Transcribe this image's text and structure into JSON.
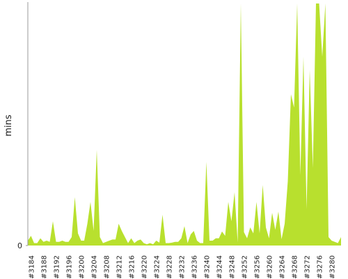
{
  "chart_data": {
    "type": "area",
    "y_label": "mins",
    "color": "#b8e02e",
    "categories": [
      null,
      "#3184",
      null,
      null,
      null,
      "#3188",
      null,
      null,
      null,
      "#3192",
      null,
      null,
      null,
      "#3196",
      null,
      null,
      null,
      "#3200",
      null,
      null,
      null,
      "#3204",
      null,
      null,
      null,
      "#3208",
      null,
      null,
      null,
      "#3212",
      null,
      null,
      null,
      "#3216",
      null,
      null,
      null,
      "#3220",
      null,
      null,
      null,
      "#3224",
      null,
      null,
      null,
      "#3228",
      null,
      null,
      null,
      "#3232",
      null,
      null,
      null,
      "#3236",
      null,
      null,
      null,
      "#3240",
      null,
      null,
      null,
      "#3244",
      null,
      null,
      null,
      "#3248",
      null,
      null,
      null,
      "#3252",
      null,
      null,
      null,
      "#3256",
      null,
      null,
      null,
      "#3260",
      null,
      null,
      null,
      "#3264",
      null,
      null,
      null,
      "#3268",
      null,
      null,
      null,
      "#3272",
      null,
      null,
      null,
      "#3276",
      null,
      null,
      null,
      "#3280",
      null,
      null,
      null
    ],
    "values": [
      2,
      4,
      1,
      1,
      3,
      1.5,
      2,
      1.5,
      10,
      1.5,
      1.5,
      2,
      1.5,
      1.5,
      3.5,
      20,
      5,
      2,
      2,
      9,
      18,
      6,
      39.5,
      3.5,
      1,
      1.5,
      2,
      2.5,
      2.5,
      9,
      6,
      3.5,
      1,
      3,
      1,
      2,
      2.5,
      1,
      0.5,
      1,
      0.5,
      2,
      1.2,
      12.7,
      1,
      1,
      1.2,
      1.5,
      1.5,
      3,
      8,
      1,
      4.6,
      6,
      2,
      1,
      1,
      34.6,
      2,
      2,
      3,
      3,
      5.8,
      4,
      18,
      10,
      22,
      1.2,
      100,
      5.5,
      3,
      7.5,
      5,
      18,
      5,
      25,
      7.5,
      3,
      13.5,
      6.5,
      14,
      2.6,
      9,
      26.5,
      62.5,
      57,
      100,
      29,
      78,
      15,
      72.6,
      32,
      100,
      100,
      78,
      100,
      3.5,
      2,
      1.5,
      1,
      3.5
    ],
    "ylim": [
      0,
      100
    ],
    "yticks": [
      0
    ]
  }
}
